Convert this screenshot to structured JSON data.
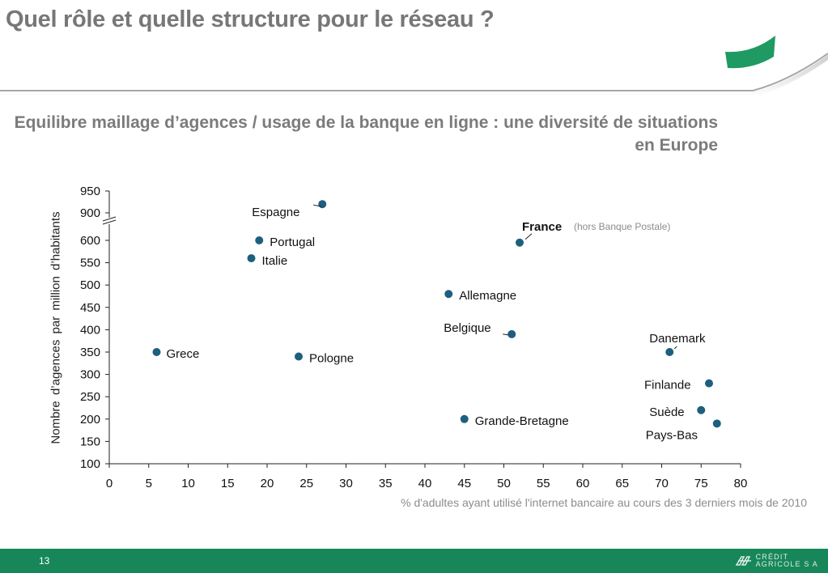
{
  "header": {
    "title": "Quel rôle et quelle structure pour le réseau ?"
  },
  "subtitle": "Equilibre maillage d’agences / usage de la banque en ligne : une diversité de situations en Europe",
  "colors": {
    "marker": "#1e5f7e",
    "footer": "#17875a",
    "accent_green": "#1e9a62",
    "title_gray": "#777777"
  },
  "chart_data": {
    "type": "scatter",
    "xlabel": "% d'adultes ayant utilisé l'internet bancaire au cours des 3 derniers mois de 2010",
    "ylabel": "Nombre d’agences par million d’habitants",
    "xlim": [
      0,
      80
    ],
    "ylim": [
      100,
      950
    ],
    "y_axis_break": [
      600,
      900
    ],
    "xticks": [
      "0",
      "5",
      "10",
      "15",
      "20",
      "25",
      "30",
      "35",
      "40",
      "45",
      "50",
      "55",
      "60",
      "65",
      "70",
      "75",
      "80"
    ],
    "yticks": [
      "100",
      "150",
      "200",
      "250",
      "300",
      "350",
      "400",
      "450",
      "500",
      "550",
      "600",
      "900",
      "950"
    ],
    "grid": false,
    "points": [
      {
        "label": "Espagne",
        "x": 27,
        "y": 920
      },
      {
        "label": "Portugal",
        "x": 19,
        "y": 600
      },
      {
        "label": "Italie",
        "x": 18,
        "y": 560
      },
      {
        "label": "France",
        "note": "(hors Banque Postale)",
        "x": 52,
        "y": 595
      },
      {
        "label": "Allemagne",
        "x": 43,
        "y": 480
      },
      {
        "label": "Belgique",
        "x": 51,
        "y": 390
      },
      {
        "label": "Grece",
        "x": 6,
        "y": 350
      },
      {
        "label": "Pologne",
        "x": 24,
        "y": 340
      },
      {
        "label": "Danemark",
        "x": 71,
        "y": 350
      },
      {
        "label": "Finlande",
        "x": 76,
        "y": 280
      },
      {
        "label": "Suède",
        "x": 75,
        "y": 220
      },
      {
        "label": "Pays-Bas",
        "x": 77,
        "y": 190
      },
      {
        "label": "Grande-Bretagne",
        "x": 45,
        "y": 200
      }
    ]
  },
  "footer": {
    "page_number": "13",
    "logo_line1": "CRÉDIT",
    "logo_line2": "AGRICOLE S A"
  }
}
